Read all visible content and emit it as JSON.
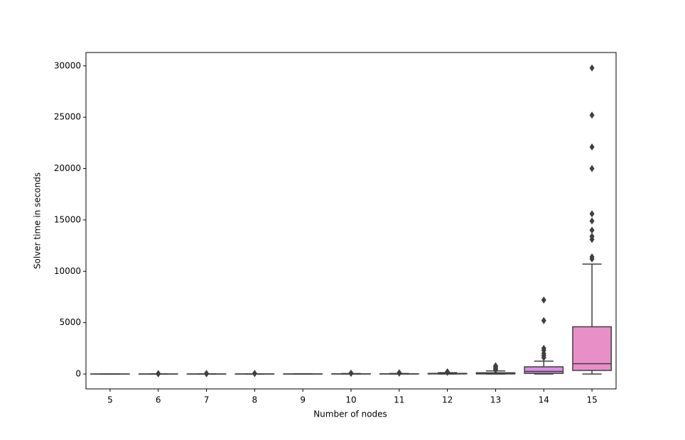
{
  "chart_data": {
    "type": "box",
    "x_label": "Number of nodes",
    "y_label": "Solver time in seconds",
    "categories": [
      "5",
      "6",
      "7",
      "8",
      "9",
      "10",
      "11",
      "12",
      "13",
      "14",
      "15"
    ],
    "colors": [
      "#dc8a8a",
      "#cf995a",
      "#b1a85a",
      "#8cb35a",
      "#5fb87a",
      "#5fb5a0",
      "#5fb1bb",
      "#6aa9d6",
      "#a39fe4",
      "#d98fe6",
      "#e88fc8"
    ],
    "boxes": [
      {
        "whislo": 0,
        "q1": 0,
        "med": 1,
        "q3": 2,
        "whishi": 4,
        "fliers": []
      },
      {
        "whislo": 0,
        "q1": 1,
        "med": 2,
        "q3": 5,
        "whishi": 10,
        "fliers": [
          20,
          40
        ]
      },
      {
        "whislo": 0,
        "q1": 1,
        "med": 3,
        "q3": 7,
        "whishi": 15,
        "fliers": [
          30,
          50
        ]
      },
      {
        "whislo": 0,
        "q1": 2,
        "med": 4,
        "q3": 10,
        "whishi": 20,
        "fliers": [
          40,
          60
        ]
      },
      {
        "whislo": 0,
        "q1": 2,
        "med": 5,
        "q3": 12,
        "whishi": 25,
        "fliers": []
      },
      {
        "whislo": 0,
        "q1": 3,
        "med": 8,
        "q3": 20,
        "whishi": 40,
        "fliers": [
          60,
          90
        ]
      },
      {
        "whislo": 0,
        "q1": 4,
        "med": 10,
        "q3": 25,
        "whishi": 50,
        "fliers": [
          80,
          120
        ]
      },
      {
        "whislo": 0,
        "q1": 8,
        "med": 20,
        "q3": 60,
        "whishi": 130,
        "fliers": [
          160,
          220
        ]
      },
      {
        "whislo": 0,
        "q1": 10,
        "med": 40,
        "q3": 120,
        "whishi": 300,
        "fliers": [
          400,
          500,
          600,
          700,
          800
        ]
      },
      {
        "whislo": 0,
        "q1": 60,
        "med": 250,
        "q3": 700,
        "whishi": 1250,
        "fliers": [
          1600,
          1800,
          2000,
          2300,
          2500,
          5200,
          7200
        ]
      },
      {
        "whislo": 0,
        "q1": 350,
        "med": 1000,
        "q3": 4600,
        "whishi": 10700,
        "fliers": [
          11200,
          11400,
          13100,
          13400,
          14000,
          14900,
          15600,
          20000,
          22100,
          25200,
          29800
        ]
      }
    ],
    "ylim": [
      -1450,
      31300
    ],
    "yticks": [
      0,
      5000,
      10000,
      15000,
      20000,
      25000,
      30000
    ]
  }
}
